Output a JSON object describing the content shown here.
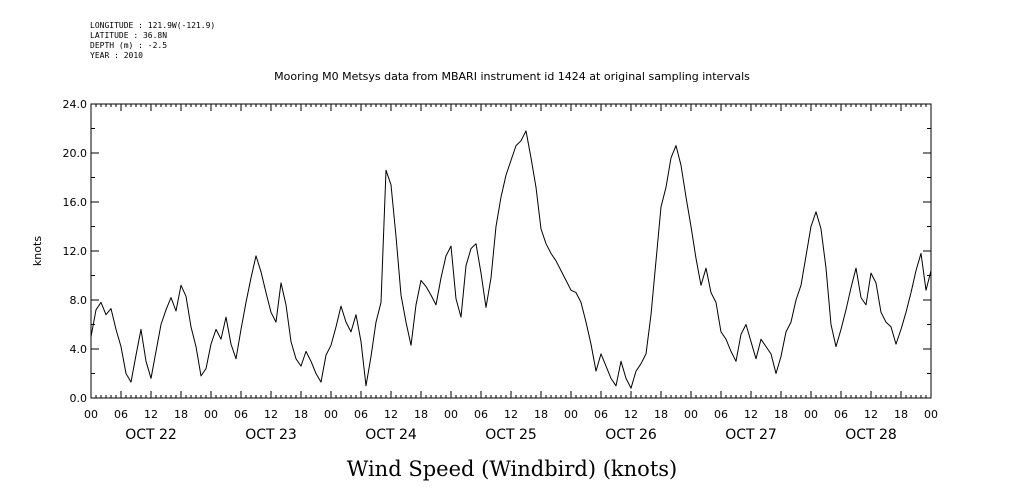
{
  "header": {
    "longitude": "LONGITUDE : 121.9W(-121.9)",
    "latitude": "LATITUDE : 36.8N",
    "depth": "DEPTH (m) : -2.5",
    "year": "YEAR : 2010"
  },
  "chart_data": {
    "type": "line",
    "title": "Mooring M0 Metsys data from MBARI instrument id 1424 at original sampling intervals",
    "xlabel": "Wind Speed (Windbird) (knots)",
    "ylabel": "knots",
    "ylim": [
      0,
      24
    ],
    "yticks": [
      "0.0",
      "4.0",
      "8.0",
      "12.0",
      "16.0",
      "20.0",
      "24.0"
    ],
    "xlim_hours": [
      0,
      168
    ],
    "x_hour_ticks": [
      "00",
      "06",
      "12",
      "18",
      "00",
      "06",
      "12",
      "18",
      "00",
      "06",
      "12",
      "18",
      "00",
      "06",
      "12",
      "18",
      "00",
      "06",
      "12",
      "18",
      "00",
      "06",
      "12",
      "18",
      "00",
      "06",
      "12",
      "18",
      "00"
    ],
    "x_day_labels": [
      "OCT 22",
      "OCT 23",
      "OCT 24",
      "OCT 25",
      "OCT 26",
      "OCT 27",
      "OCT 28"
    ],
    "grid": false,
    "series": [
      {
        "color": "#000000",
        "points": [
          [
            0,
            5.0
          ],
          [
            1,
            7.2
          ],
          [
            2,
            7.8
          ],
          [
            3,
            6.8
          ],
          [
            4,
            7.3
          ],
          [
            5,
            5.6
          ],
          [
            6,
            4.2
          ],
          [
            7,
            2.0
          ],
          [
            8,
            1.3
          ],
          [
            9,
            3.5
          ],
          [
            10,
            5.6
          ],
          [
            11,
            3.0
          ],
          [
            12,
            1.6
          ],
          [
            13,
            3.8
          ],
          [
            14,
            6.0
          ],
          [
            15,
            7.2
          ],
          [
            16,
            8.2
          ],
          [
            17,
            7.1
          ],
          [
            18,
            9.2
          ],
          [
            19,
            8.3
          ],
          [
            20,
            5.8
          ],
          [
            21,
            4.2
          ],
          [
            22,
            1.8
          ],
          [
            23,
            2.4
          ],
          [
            24,
            4.4
          ],
          [
            25,
            5.6
          ],
          [
            26,
            4.8
          ],
          [
            27,
            6.6
          ],
          [
            28,
            4.4
          ],
          [
            29,
            3.2
          ],
          [
            30,
            5.6
          ],
          [
            31,
            7.8
          ],
          [
            32,
            9.8
          ],
          [
            33,
            11.6
          ],
          [
            34,
            10.3
          ],
          [
            35,
            8.6
          ],
          [
            36,
            7.0
          ],
          [
            37,
            6.2
          ],
          [
            38,
            9.4
          ],
          [
            39,
            7.6
          ],
          [
            40,
            4.6
          ],
          [
            41,
            3.2
          ],
          [
            42,
            2.6
          ],
          [
            43,
            3.8
          ],
          [
            44,
            3.0
          ],
          [
            45,
            2.0
          ],
          [
            46,
            1.3
          ],
          [
            47,
            3.5
          ],
          [
            48,
            4.3
          ],
          [
            49,
            5.8
          ],
          [
            50,
            7.5
          ],
          [
            51,
            6.2
          ],
          [
            52,
            5.4
          ],
          [
            53,
            6.8
          ],
          [
            54,
            4.6
          ],
          [
            55,
            1.0
          ],
          [
            56,
            3.4
          ],
          [
            57,
            6.2
          ],
          [
            58,
            7.8
          ],
          [
            59,
            18.6
          ],
          [
            60,
            17.4
          ],
          [
            61,
            13.2
          ],
          [
            62,
            8.4
          ],
          [
            63,
            6.2
          ],
          [
            64,
            4.3
          ],
          [
            65,
            7.6
          ],
          [
            66,
            9.6
          ],
          [
            67,
            9.1
          ],
          [
            68,
            8.4
          ],
          [
            69,
            7.6
          ],
          [
            70,
            9.8
          ],
          [
            71,
            11.6
          ],
          [
            72,
            12.4
          ],
          [
            73,
            8.1
          ],
          [
            74,
            6.6
          ],
          [
            75,
            10.8
          ],
          [
            76,
            12.2
          ],
          [
            77,
            12.6
          ],
          [
            78,
            10.2
          ],
          [
            79,
            7.4
          ],
          [
            80,
            9.8
          ],
          [
            81,
            14.0
          ],
          [
            82,
            16.4
          ],
          [
            83,
            18.2
          ],
          [
            84,
            19.4
          ],
          [
            85,
            20.6
          ],
          [
            86,
            21.0
          ],
          [
            87,
            21.8
          ],
          [
            88,
            19.6
          ],
          [
            89,
            17.2
          ],
          [
            90,
            13.8
          ],
          [
            91,
            12.6
          ],
          [
            92,
            11.8
          ],
          [
            93,
            11.2
          ],
          [
            94,
            10.4
          ],
          [
            95,
            9.6
          ],
          [
            96,
            8.8
          ],
          [
            97,
            8.6
          ],
          [
            98,
            7.8
          ],
          [
            99,
            6.2
          ],
          [
            100,
            4.4
          ],
          [
            101,
            2.2
          ],
          [
            102,
            3.6
          ],
          [
            103,
            2.6
          ],
          [
            104,
            1.6
          ],
          [
            105,
            1.0
          ],
          [
            106,
            3.0
          ],
          [
            107,
            1.6
          ],
          [
            108,
            0.8
          ],
          [
            109,
            2.2
          ],
          [
            110,
            2.8
          ],
          [
            111,
            3.6
          ],
          [
            112,
            6.8
          ],
          [
            113,
            11.2
          ],
          [
            114,
            15.6
          ],
          [
            115,
            17.2
          ],
          [
            116,
            19.6
          ],
          [
            117,
            20.6
          ],
          [
            118,
            19.0
          ],
          [
            119,
            16.4
          ],
          [
            120,
            14.0
          ],
          [
            121,
            11.4
          ],
          [
            122,
            9.2
          ],
          [
            123,
            10.6
          ],
          [
            124,
            8.6
          ],
          [
            125,
            7.8
          ],
          [
            126,
            5.4
          ],
          [
            127,
            4.8
          ],
          [
            128,
            3.8
          ],
          [
            129,
            3.0
          ],
          [
            130,
            5.2
          ],
          [
            131,
            6.0
          ],
          [
            132,
            4.6
          ],
          [
            133,
            3.2
          ],
          [
            134,
            4.8
          ],
          [
            135,
            4.2
          ],
          [
            136,
            3.6
          ],
          [
            137,
            2.0
          ],
          [
            138,
            3.4
          ],
          [
            139,
            5.4
          ],
          [
            140,
            6.2
          ],
          [
            141,
            8.0
          ],
          [
            142,
            9.2
          ],
          [
            143,
            11.6
          ],
          [
            144,
            14.0
          ],
          [
            145,
            15.2
          ],
          [
            146,
            13.8
          ],
          [
            147,
            10.6
          ],
          [
            148,
            6.0
          ],
          [
            149,
            4.2
          ],
          [
            150,
            5.6
          ],
          [
            151,
            7.2
          ],
          [
            152,
            9.0
          ],
          [
            153,
            10.6
          ],
          [
            154,
            8.2
          ],
          [
            155,
            7.6
          ],
          [
            156,
            10.2
          ],
          [
            157,
            9.4
          ],
          [
            158,
            7.0
          ],
          [
            159,
            6.2
          ],
          [
            160,
            5.8
          ],
          [
            161,
            4.4
          ],
          [
            162,
            5.6
          ],
          [
            163,
            7.0
          ],
          [
            164,
            8.6
          ],
          [
            165,
            10.4
          ],
          [
            166,
            11.8
          ],
          [
            167,
            8.8
          ],
          [
            168,
            10.4
          ]
        ]
      }
    ]
  }
}
